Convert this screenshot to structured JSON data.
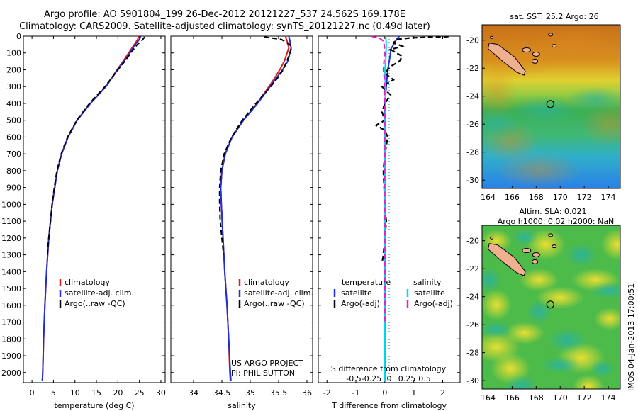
{
  "title_line1": "Argo profile: AO 5901804_199 26-Dec-2012 20121227_537 24.562S 169.178E",
  "title_line2": "Climatology: CARS2009. Satellite-adjusted climatology: synTS_20121227.nc (0.49d later)",
  "side_label": "IMOS 04-Jan-2013 17:00:51",
  "colors": {
    "climatology": "#e41a1c",
    "satellite": "#1f2fd6",
    "argo": "#000000",
    "sal_satellite": "#00d8e8",
    "sal_argo": "#e020d0",
    "land": "#f0b090"
  },
  "chart_data": [
    {
      "type": "line",
      "id": "temperature",
      "xlabel": "temperature (deg C)",
      "xlim": [
        -2,
        31
      ],
      "xticks": [
        0,
        5,
        10,
        15,
        20,
        25,
        30
      ],
      "ylim": [
        0,
        2060
      ],
      "yticks": [
        0,
        100,
        200,
        300,
        400,
        500,
        600,
        700,
        800,
        900,
        1000,
        1100,
        1200,
        1300,
        1400,
        1500,
        1600,
        1700,
        1800,
        1900,
        2000
      ],
      "legend": [
        "climatology",
        "satellite-adj. clim.",
        "Argo(..raw -QC)"
      ],
      "series": [
        {
          "name": "climatology",
          "depth": [
            0,
            20,
            50,
            100,
            150,
            200,
            300,
            400,
            500,
            600,
            700,
            800,
            1000,
            1200,
            1400,
            1600,
            1800,
            2000,
            2050
          ],
          "values": [
            24.8,
            24.6,
            23.8,
            22.5,
            21.2,
            19.8,
            17.2,
            13.6,
            10.5,
            8.4,
            6.9,
            5.9,
            4.7,
            3.9,
            3.4,
            3.0,
            2.7,
            2.5,
            2.4
          ]
        },
        {
          "name": "satellite-adj. clim.",
          "depth": [
            0,
            20,
            50,
            100,
            150,
            200,
            300,
            400,
            500,
            600,
            700,
            800,
            1000,
            1200,
            1400,
            1600,
            1800,
            2000,
            2050
          ],
          "values": [
            25.3,
            25.0,
            24.0,
            22.8,
            21.4,
            19.9,
            17.2,
            13.6,
            10.5,
            8.4,
            6.9,
            5.9,
            4.7,
            3.9,
            3.4,
            3.0,
            2.7,
            2.5,
            2.4
          ]
        },
        {
          "name": "Argo(..raw -QC)",
          "depth": [
            5,
            20,
            50,
            100,
            150,
            200,
            300,
            400,
            500,
            600,
            700,
            800,
            900,
            1000,
            1100,
            1200,
            1300
          ],
          "values": [
            26.2,
            25.8,
            24.5,
            23.0,
            21.6,
            20.0,
            17.0,
            13.4,
            10.4,
            8.3,
            6.8,
            5.8,
            5.2,
            4.7,
            4.3,
            3.9,
            3.6
          ]
        }
      ]
    },
    {
      "type": "line",
      "id": "salinity",
      "xlabel": "salinity",
      "xlim": [
        33.6,
        36.1
      ],
      "xticks": [
        34,
        34.5,
        35,
        35.5,
        36
      ],
      "ylim": [
        0,
        2060
      ],
      "legend": [
        "climatology",
        "satellite-adj. clim.",
        "Argo(..raw -QC)"
      ],
      "annotation": [
        "US ARGO PROJECT",
        "PI: PHIL SUTTON"
      ],
      "series": [
        {
          "name": "climatology",
          "depth": [
            0,
            30,
            70,
            100,
            150,
            200,
            250,
            300,
            400,
            500,
            600,
            700,
            800,
            900,
            1000,
            1200,
            1400,
            1600,
            1800,
            2000,
            2050
          ],
          "values": [
            35.62,
            35.65,
            35.68,
            35.65,
            35.6,
            35.52,
            35.43,
            35.33,
            35.12,
            34.88,
            34.68,
            34.56,
            34.5,
            34.48,
            34.49,
            34.52,
            34.55,
            34.59,
            34.62,
            34.64,
            34.65
          ]
        },
        {
          "name": "satellite-adj. clim.",
          "depth": [
            0,
            30,
            70,
            100,
            150,
            200,
            250,
            300,
            400,
            500,
            600,
            700,
            800,
            900,
            1000,
            1200,
            1400,
            1600,
            1800,
            2000,
            2050
          ],
          "values": [
            35.68,
            35.7,
            35.72,
            35.7,
            35.66,
            35.57,
            35.46,
            35.35,
            35.13,
            34.88,
            34.68,
            34.56,
            34.5,
            34.48,
            34.49,
            34.52,
            34.55,
            34.59,
            34.62,
            34.65,
            34.66
          ]
        },
        {
          "name": "Argo(..raw -QC)",
          "depth": [
            5,
            20,
            50,
            80,
            120,
            160,
            200,
            250,
            300,
            400,
            500,
            600,
            700,
            800,
            900,
            1000,
            1100,
            1200,
            1300
          ],
          "values": [
            35.25,
            35.55,
            35.7,
            35.72,
            35.68,
            35.63,
            35.58,
            35.48,
            35.36,
            35.1,
            34.86,
            34.67,
            34.54,
            34.48,
            34.46,
            34.46,
            34.47,
            34.5,
            34.53
          ]
        }
      ]
    },
    {
      "type": "line",
      "id": "differences",
      "xlabel": "T difference from climatology",
      "xlabel_top": "S difference from climatology",
      "xlim": [
        -2.3,
        2.6
      ],
      "xticks": [
        -2,
        -1,
        0,
        1,
        2
      ],
      "xticks_top": [
        -0.5,
        -0.25,
        0,
        0.25,
        0.5
      ],
      "xtick_labels_top": [
        "-0.5",
        "-0.25",
        "0",
        "0.25",
        "0.5"
      ],
      "ylim": [
        0,
        2060
      ],
      "legend_titles": [
        "temperature",
        "salinity"
      ],
      "legend": [
        "satellite",
        "Argo(-adj)",
        "satellite",
        "Argo(-adj)"
      ],
      "series": [
        {
          "name": "T satellite",
          "depth": [
            0,
            20,
            50,
            80,
            100,
            150,
            200,
            300,
            400,
            500,
            600,
            800,
            1000,
            1200,
            1500,
            2000,
            2050
          ],
          "values": [
            0.5,
            0.4,
            0.3,
            0.2,
            0.2,
            0.15,
            0.1,
            0.05,
            0.0,
            0.0,
            0.0,
            0.0,
            0.0,
            0.0,
            0.0,
            0.0,
            0.0
          ]
        },
        {
          "name": "T Argo(-adj)",
          "depth": [
            3,
            10,
            20,
            40,
            60,
            80,
            100,
            120,
            150,
            180,
            220,
            260,
            300,
            350,
            400,
            450,
            500,
            530,
            560,
            600,
            700,
            800,
            1000,
            1100,
            1200,
            1300,
            1350
          ],
          "values": [
            2.2,
            0.9,
            0.4,
            0.3,
            0.6,
            0.2,
            0.4,
            0.6,
            0.5,
            0.2,
            0.0,
            0.3,
            -0.1,
            0.2,
            0.0,
            -0.1,
            0.0,
            -0.3,
            0.0,
            0.1,
            0.0,
            -0.05,
            0.0,
            0.05,
            0.0,
            -0.05,
            -0.1
          ]
        },
        {
          "name": "S satellite",
          "depth": [
            0,
            50,
            100,
            150,
            200,
            300,
            400,
            500,
            600,
            800,
            1000,
            1200,
            1500,
            2000,
            2050
          ],
          "values": [
            0.03,
            0.05,
            0.04,
            0.03,
            0.0,
            0.02,
            0.03,
            0.0,
            0.0,
            0.0,
            0.0,
            0.0,
            0.0,
            0.0,
            0.0
          ]
        },
        {
          "name": "S Argo(-adj)",
          "depth": [
            3,
            10,
            30,
            60,
            100,
            150,
            200,
            250,
            300,
            400,
            500,
            600,
            700,
            800,
            900,
            1000,
            1100,
            1200,
            1300,
            1400,
            1500,
            1600,
            1700
          ],
          "values": [
            -0.45,
            -0.2,
            -0.04,
            -0.02,
            0.0,
            -0.03,
            -0.05,
            -0.02,
            -0.02,
            0.0,
            0.0,
            -0.01,
            0.0,
            -0.01,
            -0.01,
            -0.01,
            0.0,
            0.0,
            0.0,
            0.0,
            0.0,
            0.0,
            0.0
          ]
        }
      ]
    },
    {
      "type": "heatmap",
      "id": "sst_map",
      "title": "sat. SST: 25.2 Argo: 26",
      "xlim": [
        163.5,
        175
      ],
      "ylim": [
        -30.6,
        -18.9
      ],
      "xticks": [
        164,
        166,
        168,
        170,
        172,
        174
      ],
      "yticks": [
        -20,
        -22,
        -24,
        -26,
        -28,
        -30
      ],
      "argo_position": {
        "lon": 169.178,
        "lat": -24.562
      }
    },
    {
      "type": "heatmap",
      "id": "sla_map",
      "title": "Altim. SLA: 0.021",
      "title2": "Argo h1000: 0.02 h2000: NaN",
      "xlim": [
        163.5,
        175
      ],
      "ylim": [
        -30.6,
        -18.9
      ],
      "xticks": [
        164,
        166,
        168,
        170,
        172,
        174
      ],
      "yticks": [
        -20,
        -22,
        -24,
        -26,
        -28,
        -30
      ],
      "argo_position": {
        "lon": 169.178,
        "lat": -24.562
      }
    }
  ]
}
